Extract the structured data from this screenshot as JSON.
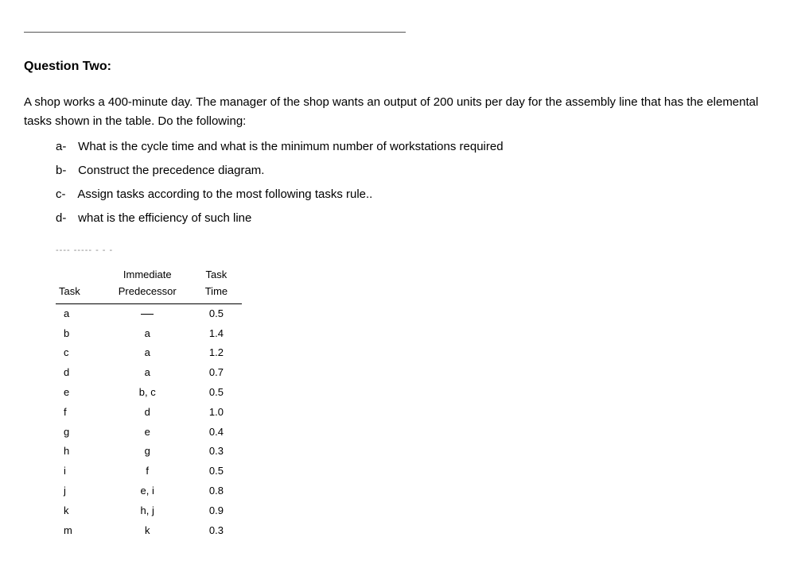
{
  "title": "Question Two:",
  "intro": "A shop works a 400-minute day. The manager of the shop wants an output of 200 units per day for the assembly line that has the elemental tasks shown in the table. Do the following:",
  "subs": {
    "a": {
      "label": "a-",
      "text": "What is the cycle time and what is the minimum number of workstations required"
    },
    "b": {
      "label": "b-",
      "text": "Construct the precedence diagram."
    },
    "c": {
      "label": "c-",
      "text": "Assign tasks according to the most following tasks rule.."
    },
    "d": {
      "label": "d-",
      "text": "what is the efficiency of such line"
    }
  },
  "dashed": "---- ----- - - -",
  "table": {
    "headers": {
      "task": "Task",
      "predecessor_l1": "Immediate",
      "predecessor_l2": "Predecessor",
      "time_l1": "Task",
      "time_l2": "Time"
    },
    "rows": [
      {
        "task": "a",
        "pred": "—",
        "time": "0.5"
      },
      {
        "task": "b",
        "pred": "a",
        "time": "1.4"
      },
      {
        "task": "c",
        "pred": "a",
        "time": "1.2"
      },
      {
        "task": "d",
        "pred": "a",
        "time": "0.7"
      },
      {
        "task": "e",
        "pred": "b, c",
        "time": "0.5"
      },
      {
        "task": "f",
        "pred": "d",
        "time": "1.0"
      },
      {
        "task": "g",
        "pred": "e",
        "time": "0.4"
      },
      {
        "task": "h",
        "pred": "g",
        "time": "0.3"
      },
      {
        "task": "i",
        "pred": "f",
        "time": "0.5"
      },
      {
        "task": "j",
        "pred": "e, i",
        "time": "0.8"
      },
      {
        "task": "k",
        "pred": "h, j",
        "time": "0.9"
      },
      {
        "task": "m",
        "pred": "k",
        "time": "0.3"
      }
    ]
  }
}
